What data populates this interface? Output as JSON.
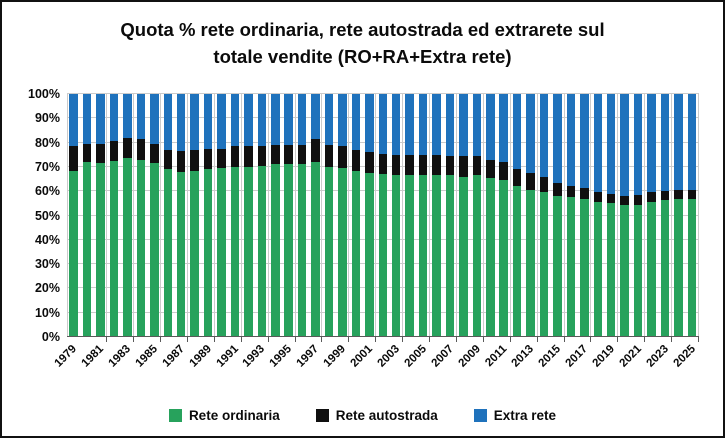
{
  "title": {
    "line1": "Quota % rete ordinaria, rete autostrada ed extrarete sul",
    "line2": "totale vendite (RO+RA+Extra rete)"
  },
  "colors": {
    "rete_ordinaria": "#27A25C",
    "rete_autostrada": "#101010",
    "extra_rete": "#1F72BC",
    "gridline": "#CBCBCB",
    "axis_line": "#595959",
    "text": "#0B0B0B",
    "background": "#FFFFFF"
  },
  "axes": {
    "y_ticks": [
      "100%",
      "90%",
      "80%",
      "70%",
      "60%",
      "50%",
      "40%",
      "30%",
      "20%",
      "10%",
      "0%"
    ],
    "x_tick_years": [
      1979,
      1981,
      1983,
      1985,
      1987,
      1989,
      1991,
      1993,
      1995,
      1997,
      1999,
      2001,
      2003,
      2005,
      2007,
      2009,
      2011,
      2013,
      2015,
      2017,
      2019,
      2021,
      2023,
      2025
    ]
  },
  "legend": {
    "items": [
      {
        "label": "Rete ordinaria",
        "color": "#27A25C"
      },
      {
        "label": "Rete autostrada",
        "color": "#101010"
      },
      {
        "label": "Extra rete",
        "color": "#1F72BC"
      }
    ]
  },
  "chart_data": {
    "type": "bar",
    "stacked": true,
    "stack_unit": "percent_of_total",
    "title": "Quota % rete ordinaria, rete autostrada ed extrarete sul totale vendite (RO+RA+Extra rete)",
    "xlabel": "",
    "ylabel": "",
    "ylim": [
      0,
      100
    ],
    "y_tick_step": 10,
    "grid": true,
    "legend_position": "bottom",
    "categories": [
      1979,
      1980,
      1981,
      1982,
      1983,
      1984,
      1985,
      1986,
      1987,
      1988,
      1989,
      1990,
      1991,
      1992,
      1993,
      1994,
      1995,
      1996,
      1997,
      1998,
      1999,
      2000,
      2001,
      2002,
      2003,
      2004,
      2005,
      2006,
      2007,
      2008,
      2009,
      2010,
      2011,
      2012,
      2013,
      2014,
      2015,
      2016,
      2017,
      2018,
      2019,
      2020,
      2021,
      2022,
      2023,
      2024,
      2025
    ],
    "series": [
      {
        "name": "Rete ordinaria",
        "color": "#27A25C",
        "values": [
          68.5,
          72,
          71.5,
          72.5,
          73.5,
          73,
          71.5,
          69,
          68,
          68.5,
          69,
          69.5,
          70,
          70,
          70.5,
          71,
          71,
          71,
          72,
          70,
          69.5,
          68.5,
          67.5,
          67,
          66.5,
          66.5,
          66.5,
          66.5,
          66.5,
          66,
          66.5,
          65.5,
          64.5,
          62,
          60.5,
          59.5,
          58,
          57.5,
          57,
          55.5,
          55,
          54.5,
          54.5,
          55.5,
          56.5,
          57,
          57
        ]
      },
      {
        "name": "Rete autostrada",
        "color": "#101010",
        "values": [
          10,
          7.5,
          8,
          8,
          8.5,
          8.5,
          8,
          8,
          8.5,
          8.5,
          8.5,
          8,
          8.5,
          8.5,
          8,
          8,
          8,
          8,
          9.5,
          9,
          9,
          8.5,
          8.5,
          8.5,
          8.5,
          8.5,
          8.5,
          8.5,
          8,
          8.5,
          8,
          7.5,
          7.5,
          7,
          7,
          6.5,
          5.5,
          4.5,
          4.5,
          4,
          4,
          3.5,
          4,
          4,
          3.5,
          3.5,
          3.5
        ]
      },
      {
        "name": "Extra rete",
        "color": "#1F72BC",
        "values": [
          21.5,
          20.5,
          20.5,
          19.5,
          18,
          18.5,
          20.5,
          23,
          23.5,
          23,
          22.5,
          22.5,
          21.5,
          21.5,
          21.5,
          21,
          21,
          21,
          18.5,
          21,
          21.5,
          23,
          24,
          24.5,
          25,
          25,
          25,
          25,
          25.5,
          25.5,
          25.5,
          27,
          28,
          31,
          32.5,
          34,
          36.5,
          38,
          38.5,
          40.5,
          41,
          42,
          41.5,
          40.5,
          40,
          39.5,
          39.5
        ]
      }
    ]
  }
}
